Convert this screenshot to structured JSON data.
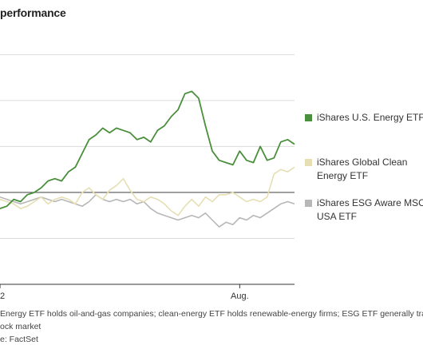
{
  "title": "performance",
  "chart_data": {
    "type": "line",
    "title": "performance",
    "x_tick_labels": [
      {
        "label": "2",
        "day": 0
      },
      {
        "label": "Aug.",
        "day": 175
      }
    ],
    "x_days": 184,
    "baseline": 0,
    "ylim": [
      -40,
      65
    ],
    "grid": true,
    "legend_position": "right",
    "series": [
      {
        "name": "iShares U.S. Energy ETF",
        "color": "#4a8f3c",
        "points": [
          [
            0,
            -7
          ],
          [
            5,
            -6
          ],
          [
            10,
            -3
          ],
          [
            15,
            -4
          ],
          [
            20,
            -1
          ],
          [
            25,
            0
          ],
          [
            30,
            2
          ],
          [
            35,
            5
          ],
          [
            40,
            6
          ],
          [
            45,
            5
          ],
          [
            50,
            9
          ],
          [
            55,
            11
          ],
          [
            60,
            17
          ],
          [
            65,
            23
          ],
          [
            70,
            25
          ],
          [
            75,
            28
          ],
          [
            80,
            26
          ],
          [
            85,
            28
          ],
          [
            90,
            27
          ],
          [
            95,
            26
          ],
          [
            100,
            23
          ],
          [
            105,
            24
          ],
          [
            110,
            22
          ],
          [
            115,
            27
          ],
          [
            120,
            29
          ],
          [
            125,
            33
          ],
          [
            130,
            36
          ],
          [
            135,
            43
          ],
          [
            140,
            44
          ],
          [
            145,
            41
          ],
          [
            150,
            29
          ],
          [
            155,
            18
          ],
          [
            160,
            14
          ],
          [
            165,
            13
          ],
          [
            170,
            12
          ],
          [
            175,
            18
          ],
          [
            180,
            14
          ],
          [
            185,
            13
          ],
          [
            190,
            20
          ],
          [
            195,
            14
          ],
          [
            200,
            15
          ],
          [
            205,
            22
          ],
          [
            210,
            23
          ],
          [
            215,
            21
          ]
        ]
      },
      {
        "name": "iShares Global Clean Energy ETF",
        "color": "#e6dfb3",
        "points": [
          [
            0,
            -3
          ],
          [
            5,
            -4
          ],
          [
            10,
            -5
          ],
          [
            15,
            -7
          ],
          [
            20,
            -6
          ],
          [
            25,
            -4
          ],
          [
            30,
            -2
          ],
          [
            35,
            -5
          ],
          [
            40,
            -3
          ],
          [
            45,
            -2
          ],
          [
            50,
            -3
          ],
          [
            55,
            -5
          ],
          [
            60,
            0
          ],
          [
            65,
            2
          ],
          [
            70,
            -1
          ],
          [
            75,
            -3
          ],
          [
            80,
            1
          ],
          [
            85,
            3
          ],
          [
            90,
            6
          ],
          [
            95,
            1
          ],
          [
            100,
            -3
          ],
          [
            105,
            -4
          ],
          [
            110,
            -2
          ],
          [
            115,
            -3
          ],
          [
            120,
            -5
          ],
          [
            125,
            -8
          ],
          [
            130,
            -10
          ],
          [
            135,
            -6
          ],
          [
            140,
            -3
          ],
          [
            145,
            -6
          ],
          [
            150,
            -2
          ],
          [
            155,
            -4
          ],
          [
            160,
            -1
          ],
          [
            165,
            -1
          ],
          [
            170,
            0
          ],
          [
            175,
            -2
          ],
          [
            180,
            -4
          ],
          [
            185,
            -3
          ],
          [
            190,
            -4
          ],
          [
            195,
            -2
          ],
          [
            200,
            8
          ],
          [
            205,
            10
          ],
          [
            210,
            9
          ],
          [
            215,
            11
          ]
        ]
      },
      {
        "name": "iShares ESG Aware MSCI USA ETF",
        "color": "#b7b7b7",
        "points": [
          [
            0,
            -2
          ],
          [
            5,
            -3
          ],
          [
            10,
            -4
          ],
          [
            15,
            -5
          ],
          [
            20,
            -4
          ],
          [
            25,
            -3
          ],
          [
            30,
            -2
          ],
          [
            35,
            -3
          ],
          [
            40,
            -4
          ],
          [
            45,
            -3
          ],
          [
            50,
            -4
          ],
          [
            55,
            -5
          ],
          [
            60,
            -6
          ],
          [
            65,
            -4
          ],
          [
            70,
            -1
          ],
          [
            75,
            -3
          ],
          [
            80,
            -4
          ],
          [
            85,
            -3
          ],
          [
            90,
            -4
          ],
          [
            95,
            -3
          ],
          [
            100,
            -5
          ],
          [
            105,
            -4
          ],
          [
            110,
            -7
          ],
          [
            115,
            -9
          ],
          [
            120,
            -10
          ],
          [
            125,
            -11
          ],
          [
            130,
            -12
          ],
          [
            135,
            -11
          ],
          [
            140,
            -10
          ],
          [
            145,
            -11
          ],
          [
            150,
            -9
          ],
          [
            155,
            -12
          ],
          [
            160,
            -15
          ],
          [
            165,
            -13
          ],
          [
            170,
            -14
          ],
          [
            175,
            -11
          ],
          [
            180,
            -12
          ],
          [
            185,
            -10
          ],
          [
            190,
            -11
          ],
          [
            195,
            -9
          ],
          [
            200,
            -7
          ],
          [
            205,
            -5
          ],
          [
            210,
            -4
          ],
          [
            215,
            -5
          ]
        ]
      }
    ]
  },
  "legend": [
    {
      "name": "iShares U.S. Energy ETF",
      "color": "#4a8f3c"
    },
    {
      "name": "iShares Global Clean Energy ETF",
      "color": "#e6dfb3"
    },
    {
      "name": "iShares ESG Aware MSCI USA ETF",
      "color": "#b7b7b7"
    }
  ],
  "footnote": {
    "line1": "Energy ETF holds oil-and-gas companies; clean-energy ETF holds renewable-energy firms; ESG ETF generally tracks",
    "line2": "ock market",
    "source": "e: FactSet"
  }
}
